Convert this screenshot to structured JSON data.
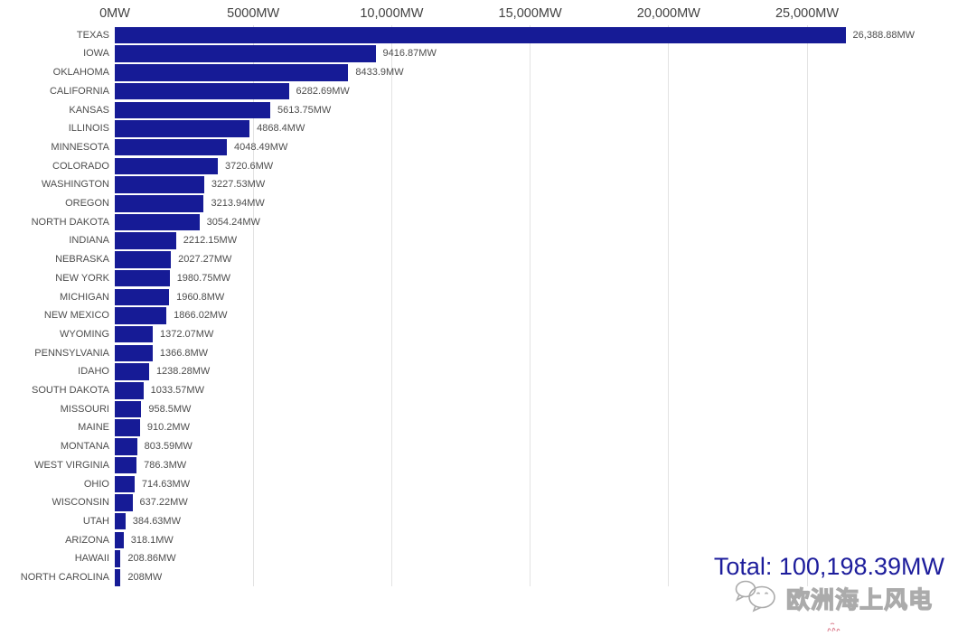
{
  "chart_data": {
    "type": "bar",
    "orientation": "horizontal",
    "title": "",
    "xlabel": "",
    "ylabel": "",
    "unit": "MW",
    "grid": true,
    "legend": false,
    "bar_color": "#161b96",
    "axis_range": [
      0,
      25000
    ],
    "x_ticks": [
      0,
      5000,
      10000,
      15000,
      20000,
      25000
    ],
    "x_tick_labels": [
      "0MW",
      "5000MW",
      "10,000MW",
      "15,000MW",
      "20,000MW",
      "25,000MW"
    ],
    "categories": [
      "TEXAS",
      "IOWA",
      "OKLAHOMA",
      "CALIFORNIA",
      "KANSAS",
      "ILLINOIS",
      "MINNESOTA",
      "COLORADO",
      "WASHINGTON",
      "OREGON",
      "NORTH DAKOTA",
      "INDIANA",
      "NEBRASKA",
      "NEW YORK",
      "MICHIGAN",
      "NEW MEXICO",
      "WYOMING",
      "PENNSYLVANIA",
      "IDAHO",
      "SOUTH DAKOTA",
      "MISSOURI",
      "MAINE",
      "MONTANA",
      "WEST VIRGINIA",
      "OHIO",
      "WISCONSIN",
      "UTAH",
      "ARIZONA",
      "HAWAII",
      "NORTH CAROLINA"
    ],
    "values": [
      26388.88,
      9416.87,
      8433.9,
      6282.69,
      5613.75,
      4868.4,
      4048.49,
      3720.6,
      3227.53,
      3213.94,
      3054.24,
      2212.15,
      2027.27,
      1980.75,
      1960.8,
      1866.02,
      1372.07,
      1366.8,
      1238.28,
      1033.57,
      958.5,
      910.2,
      803.59,
      786.3,
      714.63,
      637.22,
      384.63,
      318.1,
      208.86,
      208
    ],
    "value_labels": [
      "26,388.88MW",
      "9416.87MW",
      "8433.9MW",
      "6282.69MW",
      "5613.75MW",
      "4868.4MW",
      "4048.49MW",
      "3720.6MW",
      "3227.53MW",
      "3213.94MW",
      "3054.24MW",
      "2212.15MW",
      "2027.27MW",
      "1980.75MW",
      "1960.8MW",
      "1866.02MW",
      "1372.07MW",
      "1366.8MW",
      "1238.28MW",
      "1033.57MW",
      "958.5MW",
      "910.2MW",
      "803.59MW",
      "786.3MW",
      "714.63MW",
      "637.22MW",
      "384.63MW",
      "318.1MW",
      "208.86MW",
      "208MW"
    ],
    "total_label": "Total: 100,198.39MW"
  },
  "watermark": {
    "text": "欧洲海上风电"
  }
}
